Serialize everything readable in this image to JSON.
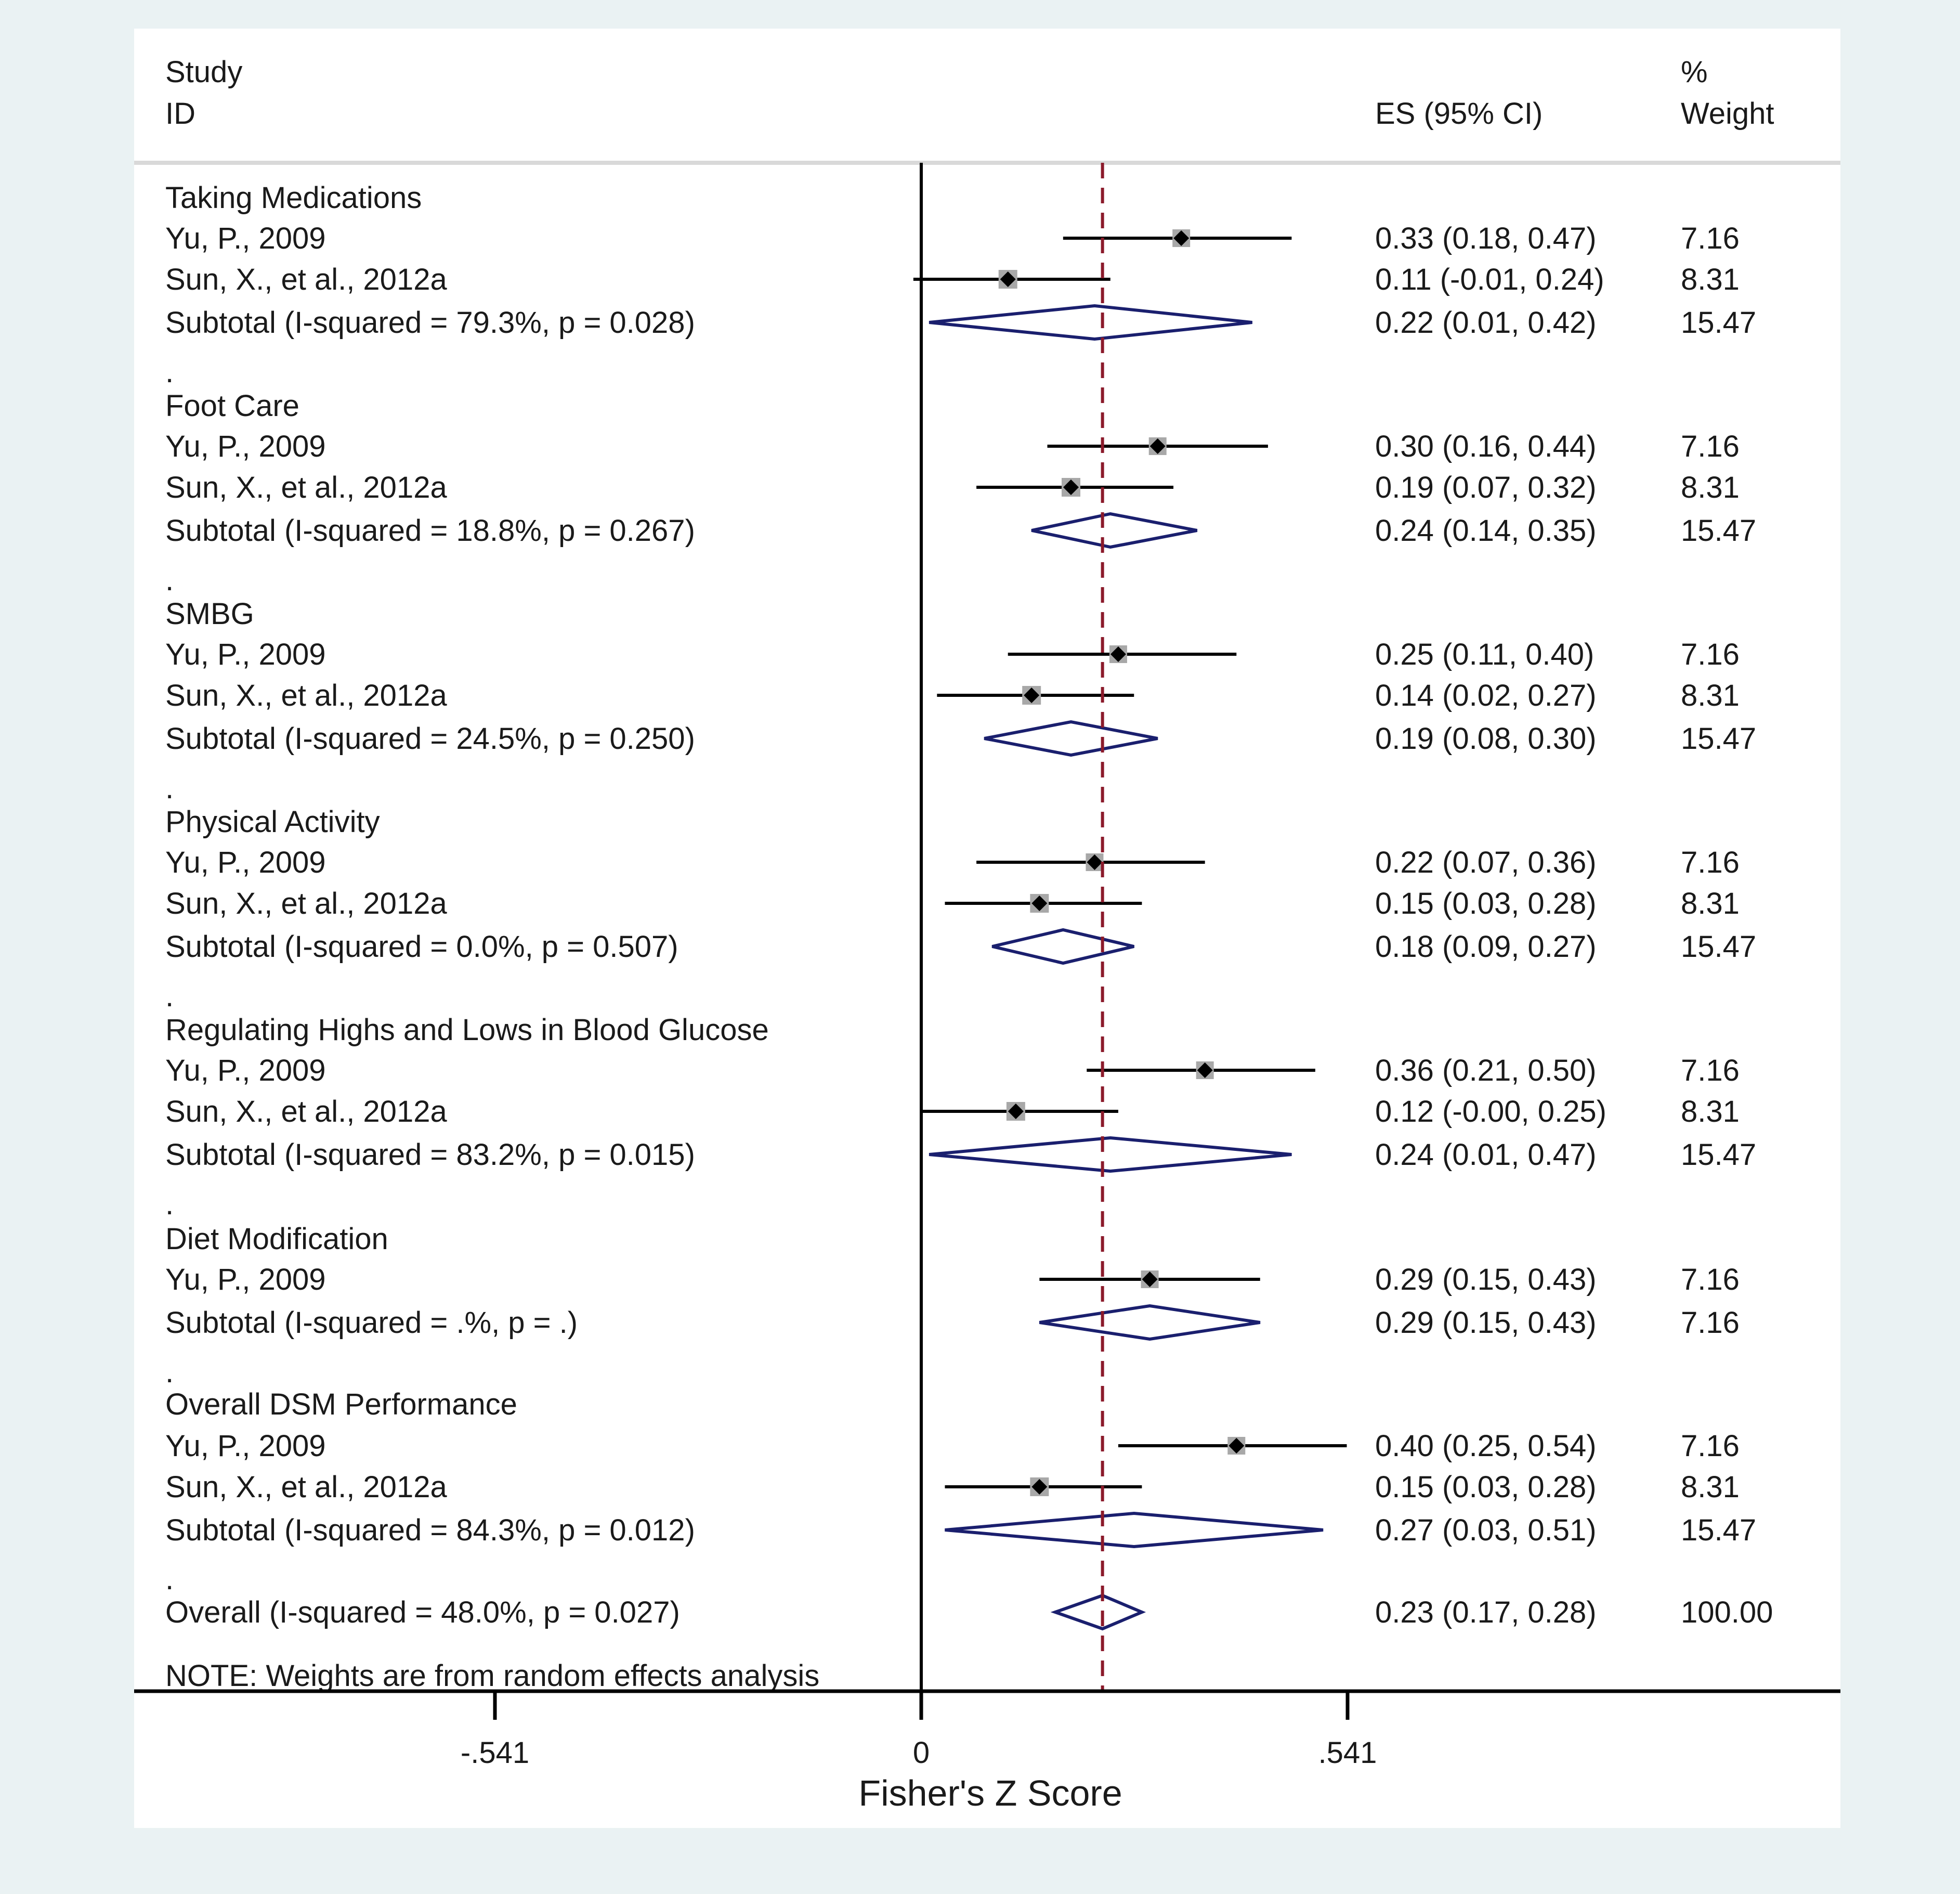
{
  "chart_data": {
    "type": "forest",
    "xlabel": "Fisher's Z Score",
    "x_ticks": [
      {
        "value": -0.541,
        "label": "-.541"
      },
      {
        "value": 0,
        "label": "0"
      },
      {
        "value": 0.541,
        "label": ".541"
      }
    ],
    "xlim": [
      -1.0,
      1.15
    ],
    "overall_line_value": 0.23,
    "header": {
      "study_label_line1": "Study",
      "study_label_line2": "ID",
      "es_label": "ES (95% CI)",
      "weight_label_line1": "%",
      "weight_label_line2": "Weight"
    },
    "rows": [
      {
        "kind": "group",
        "label": "Taking Medications"
      },
      {
        "kind": "study",
        "label": "Yu, P., 2009",
        "es": 0.33,
        "lo": 0.18,
        "hi": 0.47,
        "es_text": "0.33 (0.18, 0.47)",
        "weight": "7.16"
      },
      {
        "kind": "study",
        "label": "Sun, X., et al., 2012a",
        "es": 0.11,
        "lo": -0.01,
        "hi": 0.24,
        "es_text": "0.11 (-0.01, 0.24)",
        "weight": "8.31"
      },
      {
        "kind": "subtotal",
        "label": "Subtotal  (I-squared = 79.3%, p = 0.028)",
        "es": 0.22,
        "lo": 0.01,
        "hi": 0.42,
        "es_text": "0.22 (0.01, 0.42)",
        "weight": "15.47"
      },
      {
        "kind": "sep",
        "label": "."
      },
      {
        "kind": "group",
        "label": "Foot Care"
      },
      {
        "kind": "study",
        "label": "Yu, P., 2009",
        "es": 0.3,
        "lo": 0.16,
        "hi": 0.44,
        "es_text": "0.30 (0.16, 0.44)",
        "weight": "7.16"
      },
      {
        "kind": "study",
        "label": "Sun, X., et al., 2012a",
        "es": 0.19,
        "lo": 0.07,
        "hi": 0.32,
        "es_text": "0.19 (0.07, 0.32)",
        "weight": "8.31"
      },
      {
        "kind": "subtotal",
        "label": "Subtotal  (I-squared = 18.8%, p = 0.267)",
        "es": 0.24,
        "lo": 0.14,
        "hi": 0.35,
        "es_text": "0.24 (0.14, 0.35)",
        "weight": "15.47"
      },
      {
        "kind": "sep",
        "label": "."
      },
      {
        "kind": "group",
        "label": "SMBG"
      },
      {
        "kind": "study",
        "label": "Yu, P., 2009",
        "es": 0.25,
        "lo": 0.11,
        "hi": 0.4,
        "es_text": "0.25 (0.11, 0.40)",
        "weight": "7.16"
      },
      {
        "kind": "study",
        "label": "Sun, X., et al., 2012a",
        "es": 0.14,
        "lo": 0.02,
        "hi": 0.27,
        "es_text": "0.14 (0.02, 0.27)",
        "weight": "8.31"
      },
      {
        "kind": "subtotal",
        "label": "Subtotal  (I-squared = 24.5%, p = 0.250)",
        "es": 0.19,
        "lo": 0.08,
        "hi": 0.3,
        "es_text": "0.19 (0.08, 0.30)",
        "weight": "15.47"
      },
      {
        "kind": "sep",
        "label": "."
      },
      {
        "kind": "group",
        "label": "Physical Activity"
      },
      {
        "kind": "study",
        "label": "Yu, P., 2009",
        "es": 0.22,
        "lo": 0.07,
        "hi": 0.36,
        "es_text": "0.22 (0.07, 0.36)",
        "weight": "7.16"
      },
      {
        "kind": "study",
        "label": "Sun, X., et al., 2012a",
        "es": 0.15,
        "lo": 0.03,
        "hi": 0.28,
        "es_text": "0.15 (0.03, 0.28)",
        "weight": "8.31"
      },
      {
        "kind": "subtotal",
        "label": "Subtotal  (I-squared = 0.0%, p = 0.507)",
        "es": 0.18,
        "lo": 0.09,
        "hi": 0.27,
        "es_text": "0.18 (0.09, 0.27)",
        "weight": "15.47"
      },
      {
        "kind": "sep",
        "label": "."
      },
      {
        "kind": "group",
        "label": "Regulating Highs and Lows in Blood Glucose"
      },
      {
        "kind": "study",
        "label": "Yu, P., 2009",
        "es": 0.36,
        "lo": 0.21,
        "hi": 0.5,
        "es_text": "0.36 (0.21, 0.50)",
        "weight": "7.16"
      },
      {
        "kind": "study",
        "label": "Sun, X., et al., 2012a",
        "es": 0.12,
        "lo": -0.0,
        "hi": 0.25,
        "es_text": "0.12 (-0.00, 0.25)",
        "weight": "8.31"
      },
      {
        "kind": "subtotal",
        "label": "Subtotal  (I-squared = 83.2%, p = 0.015)",
        "es": 0.24,
        "lo": 0.01,
        "hi": 0.47,
        "es_text": "0.24 (0.01, 0.47)",
        "weight": "15.47"
      },
      {
        "kind": "sep",
        "label": "."
      },
      {
        "kind": "group",
        "label": "Diet Modification"
      },
      {
        "kind": "study",
        "label": "Yu, P., 2009",
        "es": 0.29,
        "lo": 0.15,
        "hi": 0.43,
        "es_text": "0.29 (0.15, 0.43)",
        "weight": "7.16"
      },
      {
        "kind": "subtotal",
        "label": "Subtotal  (I-squared = .%, p = .)",
        "es": 0.29,
        "lo": 0.15,
        "hi": 0.43,
        "es_text": "0.29 (0.15, 0.43)",
        "weight": "7.16"
      },
      {
        "kind": "sep",
        "label": "."
      },
      {
        "kind": "group",
        "label": "Overall DSM Performance"
      },
      {
        "kind": "study",
        "label": "Yu, P., 2009",
        "es": 0.4,
        "lo": 0.25,
        "hi": 0.54,
        "es_text": "0.40 (0.25, 0.54)",
        "weight": "7.16"
      },
      {
        "kind": "study",
        "label": "Sun, X., et al., 2012a",
        "es": 0.15,
        "lo": 0.03,
        "hi": 0.28,
        "es_text": "0.15 (0.03, 0.28)",
        "weight": "8.31"
      },
      {
        "kind": "subtotal",
        "label": "Subtotal  (I-squared = 84.3%, p = 0.012)",
        "es": 0.27,
        "lo": 0.03,
        "hi": 0.51,
        "es_text": "0.27 (0.03, 0.51)",
        "weight": "15.47"
      },
      {
        "kind": "sep",
        "label": "."
      },
      {
        "kind": "overall",
        "label": "Overall  (I-squared = 48.0%, p = 0.027)",
        "es": 0.23,
        "lo": 0.17,
        "hi": 0.28,
        "es_text": "0.23 (0.17, 0.28)",
        "weight": "100.00"
      },
      {
        "kind": "note",
        "label": "NOTE: Weights are from random effects analysis"
      }
    ]
  },
  "colors": {
    "background": "#eaf2f3",
    "panel": "#ffffff",
    "diamond": "#1a1f6e",
    "null_line": "#8b1a2b",
    "marker_box": "#a8a8a8",
    "text": "#1a1a1a"
  }
}
